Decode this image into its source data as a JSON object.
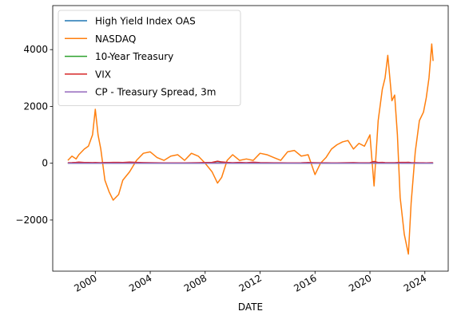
{
  "chart_data": {
    "type": "line",
    "title": "",
    "xlabel": "DATE",
    "ylabel": "",
    "xlim": [
      1996.9,
      2025.7
    ],
    "ylim": [
      -3800,
      5550
    ],
    "x_ticks": [
      {
        "value": 2000,
        "label": "2000"
      },
      {
        "value": 2004,
        "label": "2004"
      },
      {
        "value": 2008,
        "label": "2008"
      },
      {
        "value": 2012,
        "label": "2012"
      },
      {
        "value": 2016,
        "label": "2016"
      },
      {
        "value": 2020,
        "label": "2020"
      },
      {
        "value": 2024,
        "label": "2024"
      }
    ],
    "y_ticks": [
      {
        "value": -2000,
        "label": "−2000"
      },
      {
        "value": 0,
        "label": "0"
      },
      {
        "value": 2000,
        "label": "2000"
      },
      {
        "value": 4000,
        "label": "4000"
      }
    ],
    "grid": false,
    "legend_position": "top-left",
    "x": [
      1998.0,
      1998.3,
      1998.6,
      1998.8,
      1999.2,
      1999.5,
      1999.8,
      2000.0,
      2000.2,
      2000.4,
      2000.7,
      2001.0,
      2001.3,
      2001.7,
      2002.0,
      2002.5,
      2003.0,
      2003.5,
      2004.0,
      2004.5,
      2005.0,
      2005.5,
      2006.0,
      2006.5,
      2007.0,
      2007.5,
      2008.0,
      2008.5,
      2008.9,
      2009.2,
      2009.6,
      2010.0,
      2010.5,
      2011.0,
      2011.5,
      2012.0,
      2012.5,
      2013.0,
      2013.5,
      2014.0,
      2014.5,
      2015.0,
      2015.5,
      2016.0,
      2016.4,
      2016.8,
      2017.2,
      2017.6,
      2018.0,
      2018.4,
      2018.8,
      2019.2,
      2019.6,
      2020.0,
      2020.3,
      2020.6,
      2020.9,
      2021.1,
      2021.3,
      2021.6,
      2021.8,
      2022.0,
      2022.2,
      2022.5,
      2022.8,
      2023.0,
      2023.3,
      2023.6,
      2023.9,
      2024.1,
      2024.3,
      2024.5,
      2024.6
    ],
    "series": [
      {
        "name": "High Yield Index OAS",
        "color": "#1f77b4",
        "values": [
          4,
          5,
          5,
          8,
          6,
          5,
          6,
          6,
          7,
          8,
          9,
          9,
          8,
          9,
          9,
          8,
          6,
          5,
          4,
          4,
          4,
          4,
          3,
          3,
          3,
          4,
          6,
          7,
          15,
          14,
          9,
          6,
          6,
          5,
          6,
          6,
          6,
          5,
          5,
          4,
          4,
          5,
          5,
          6,
          5,
          4,
          4,
          3,
          3,
          4,
          4,
          4,
          4,
          4,
          8,
          5,
          4,
          4,
          3,
          3,
          3,
          4,
          4,
          5,
          5,
          4,
          4,
          4,
          4,
          3,
          3,
          3,
          3
        ]
      },
      {
        "name": "NASDAQ",
        "color": "#ff7f0e",
        "values": [
          100,
          250,
          150,
          300,
          500,
          600,
          1000,
          1900,
          1000,
          500,
          -600,
          -1000,
          -1300,
          -1100,
          -600,
          -300,
          100,
          350,
          400,
          200,
          100,
          250,
          300,
          100,
          350,
          250,
          0,
          -300,
          -700,
          -500,
          100,
          300,
          100,
          150,
          100,
          350,
          300,
          200,
          100,
          400,
          450,
          250,
          300,
          -400,
          0,
          200,
          500,
          650,
          750,
          800,
          500,
          700,
          600,
          1000,
          -800,
          1500,
          2600,
          3000,
          3800,
          2200,
          2400,
          1000,
          -1200,
          -2500,
          -3200,
          -1400,
          400,
          1500,
          1800,
          2300,
          3000,
          4200,
          3600
        ]
      },
      {
        "name": "10-Year Treasury",
        "color": "#2ca02c",
        "values": [
          6,
          5,
          5,
          5,
          6,
          6,
          6,
          6,
          6,
          5,
          5,
          5,
          5,
          4,
          5,
          4,
          4,
          4,
          4,
          4,
          4,
          4,
          5,
          5,
          5,
          5,
          4,
          4,
          3,
          3,
          3,
          3,
          3,
          3,
          3,
          2,
          2,
          2,
          3,
          3,
          3,
          2,
          2,
          2,
          2,
          2,
          2,
          2,
          3,
          3,
          3,
          3,
          2,
          2,
          1,
          1,
          1,
          1,
          2,
          1,
          2,
          2,
          3,
          3,
          4,
          4,
          4,
          4,
          5,
          4,
          4,
          4,
          4
        ]
      },
      {
        "name": "VIX",
        "color": "#d62728",
        "values": [
          20,
          22,
          28,
          40,
          26,
          24,
          22,
          24,
          22,
          20,
          24,
          26,
          28,
          30,
          26,
          38,
          30,
          22,
          17,
          15,
          13,
          12,
          12,
          13,
          14,
          20,
          25,
          30,
          70,
          45,
          30,
          20,
          30,
          18,
          35,
          22,
          18,
          14,
          15,
          13,
          12,
          14,
          25,
          20,
          16,
          14,
          11,
          10,
          14,
          18,
          22,
          15,
          16,
          18,
          60,
          26,
          30,
          22,
          18,
          19,
          20,
          25,
          30,
          28,
          32,
          22,
          18,
          16,
          14,
          13,
          15,
          18,
          16
        ]
      },
      {
        "name": "CP - Treasury Spread, 3m",
        "color": "#9467bd",
        "values": [
          0,
          0,
          0,
          1,
          0,
          0,
          0,
          0,
          0,
          0,
          0,
          0,
          0,
          0,
          0,
          0,
          0,
          0,
          0,
          0,
          0,
          0,
          0,
          0,
          0,
          1,
          1,
          1,
          2,
          1,
          0,
          0,
          0,
          0,
          0,
          0,
          0,
          0,
          0,
          0,
          0,
          0,
          0,
          0,
          0,
          0,
          0,
          0,
          0,
          0,
          0,
          0,
          0,
          0,
          1,
          0,
          0,
          0,
          0,
          0,
          0,
          0,
          0,
          0,
          0,
          0,
          0,
          0,
          0,
          0,
          0,
          0,
          0
        ]
      }
    ]
  }
}
